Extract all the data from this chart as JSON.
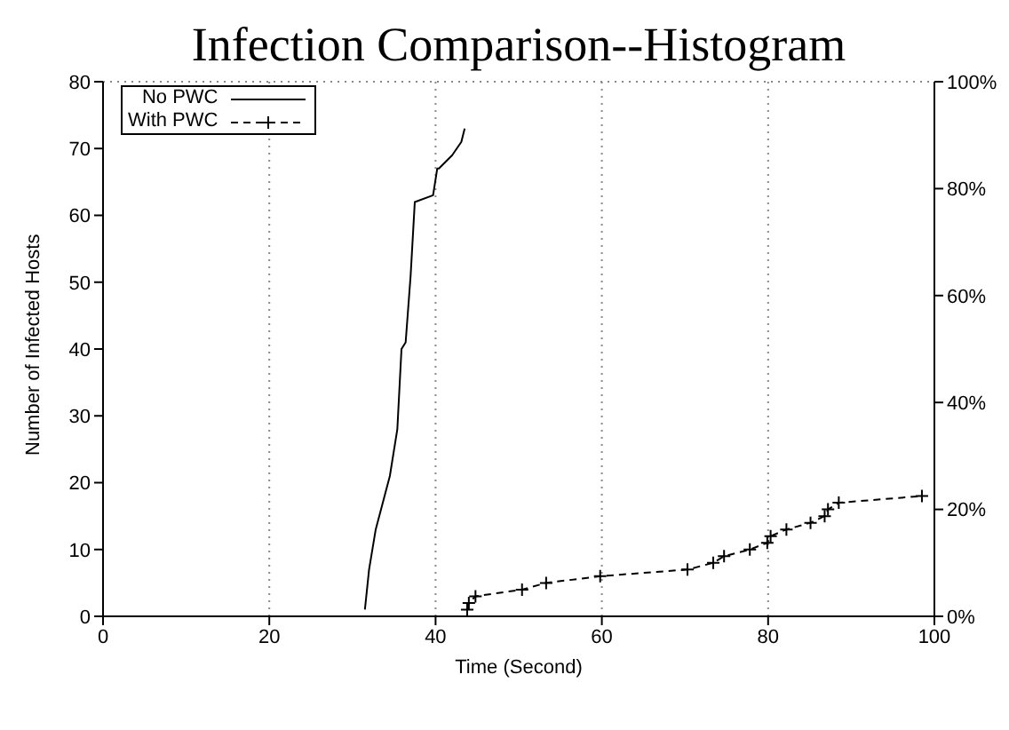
{
  "chart_data": {
    "type": "line",
    "title": "Infection Comparison--Histogram",
    "xlabel": "Time (Second)",
    "ylabel": "Number of Infected Hosts",
    "series": [
      {
        "name": "No PWC",
        "color": "#000000",
        "marker": "none",
        "line_style": "solid",
        "x": [
          31.5,
          32,
          32.8,
          34.5,
          35.4,
          35.9,
          36.4,
          37,
          37.5,
          39.7,
          40.2,
          40.4,
          42,
          43.1,
          43.5
        ],
        "values": [
          1,
          7,
          13,
          21,
          28,
          40,
          41,
          51,
          62,
          63,
          67,
          67,
          69,
          71,
          73
        ]
      },
      {
        "name": "With PWC",
        "color": "#000000",
        "marker": "cross",
        "line_style": "dashed",
        "x": [
          43.8,
          44,
          44.8,
          50.4,
          53.3,
          59.8,
          70.3,
          73.4,
          74.7,
          77.8,
          79.9,
          80.3,
          82.2,
          85.1,
          86.8,
          87.2,
          88.5,
          98.5
        ],
        "values": [
          1,
          2,
          3,
          4,
          5,
          6,
          7,
          8,
          9,
          10,
          11,
          12,
          13,
          14,
          15,
          16,
          17,
          18
        ]
      }
    ],
    "xlim": [
      0,
      100
    ],
    "xticks": [
      0,
      20,
      40,
      60,
      80,
      100
    ],
    "ylim": [
      0,
      80
    ],
    "yticks": [
      0,
      10,
      20,
      30,
      40,
      50,
      60,
      70,
      80
    ],
    "y2lim": [
      0,
      100
    ],
    "y2ticks": [
      {
        "value": 0,
        "label": "0%"
      },
      {
        "value": 20,
        "label": "20%"
      },
      {
        "value": 40,
        "label": "40%"
      },
      {
        "value": 60,
        "label": "60%"
      },
      {
        "value": 80,
        "label": "80%"
      },
      {
        "value": 100,
        "label": "100%"
      }
    ],
    "grid": true,
    "legend": "top left"
  }
}
